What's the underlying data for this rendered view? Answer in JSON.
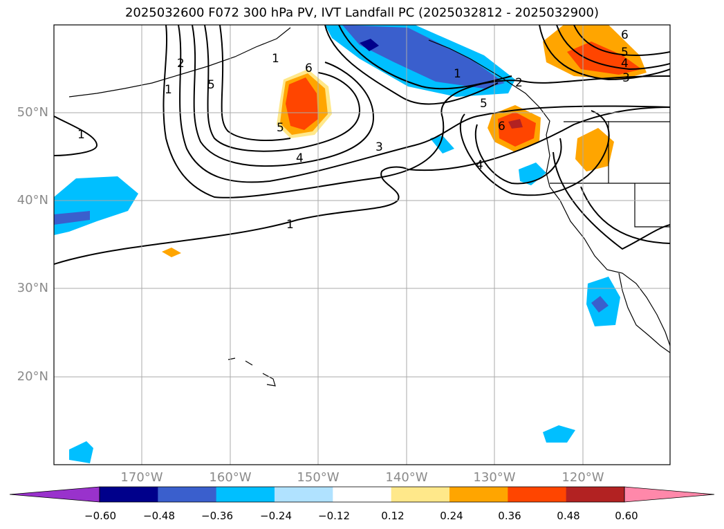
{
  "title": "2025032600 F072 300 hPa PV, IVT Landfall PC (2025032812 - 2025032900)",
  "lat_labels": [
    "50°N",
    "40°N",
    "30°N",
    "20°N"
  ],
  "lon_labels": [
    "170°W",
    "160°W",
    "150°W",
    "140°W",
    "130°W",
    "120°W"
  ],
  "contour_labels": [
    "1",
    "1",
    "2",
    "5",
    "1",
    "6",
    "5",
    "4",
    "3",
    "1",
    "2",
    "5",
    "6",
    "4",
    "6",
    "5",
    "4",
    "3",
    "1"
  ],
  "colorbar": {
    "ticks": [
      "−0.60",
      "−0.48",
      "−0.36",
      "−0.24",
      "−0.12",
      "0.12",
      "0.24",
      "0.36",
      "0.48",
      "0.60"
    ],
    "colors": [
      "#9932cc",
      "#00008b",
      "#3a5fcd",
      "#00bfff",
      "#b0e2ff",
      "#ffffff",
      "#ffe88a",
      "#ffa500",
      "#ff4500",
      "#b22222",
      "#ff88aa"
    ]
  }
}
